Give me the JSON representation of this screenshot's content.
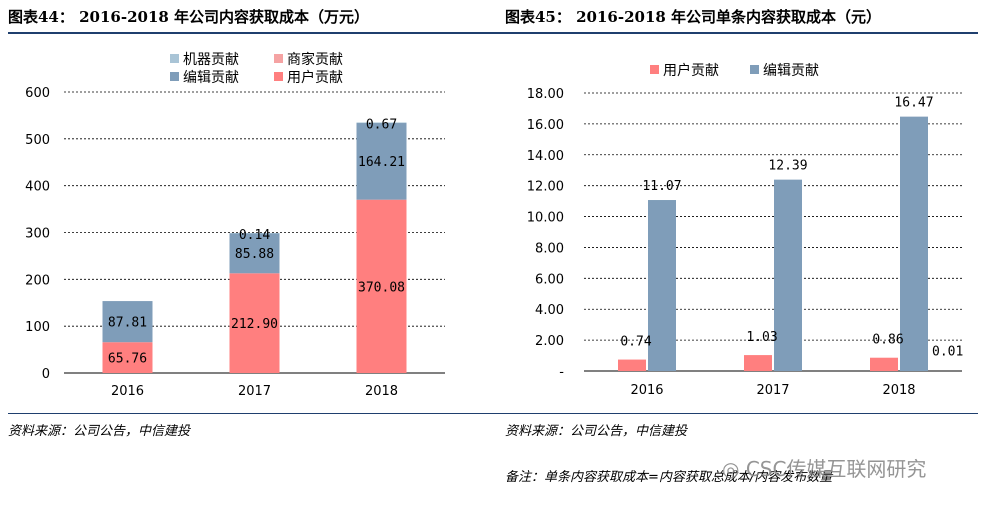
{
  "left_title": "图表44：  2016-2018 年公司内容获取成本（万元）",
  "right_title": "图表45：  2016-2018 年公司单条内容获取成本（元）",
  "left_source": "资料来源：公司公告，中信建投",
  "right_source": "资料来源：公司公告，中信建投",
  "right_note": "备注：单条内容获取成本=内容获取总成本/内容发布数量",
  "watermark": "CSC传媒互联网研究",
  "colors": {
    "machine": "#a9c4d6",
    "merchant": "#f5a3a3",
    "editor": "#7f9db9",
    "user": "#ff7f7f",
    "rule": "#1f3f6e"
  },
  "chart_data": [
    {
      "type": "bar",
      "stacked": true,
      "categories": [
        "2016",
        "2017",
        "2018"
      ],
      "series": [
        {
          "key": "user",
          "name": "用户贡献",
          "values": [
            65.76,
            212.9,
            370.08
          ],
          "labels": [
            "65.76",
            "212.90",
            "370.08"
          ]
        },
        {
          "key": "editor",
          "name": "编辑贡献",
          "values": [
            87.81,
            85.88,
            164.21
          ],
          "labels": [
            "87.81",
            "85.88",
            "164.21"
          ]
        },
        {
          "key": "merchant",
          "name": "商家贡献",
          "values": [
            0,
            0,
            0
          ],
          "labels": [
            "",
            "",
            ""
          ]
        },
        {
          "key": "machine",
          "name": "机器贡献",
          "values": [
            0,
            0.14,
            0.67
          ],
          "labels": [
            "",
            "0.14",
            "0.67"
          ]
        }
      ],
      "legend_order": [
        "machine",
        "merchant",
        "editor",
        "user"
      ],
      "ylim": [
        0,
        600
      ],
      "yticks": [
        0,
        100,
        200,
        300,
        400,
        500,
        600
      ],
      "ytick_labels": [
        "0",
        "100",
        "200",
        "300",
        "400",
        "500",
        "600"
      ],
      "grid": true,
      "legend_position": "top"
    },
    {
      "type": "bar",
      "stacked": false,
      "categories": [
        "2016",
        "2017",
        "2018"
      ],
      "series": [
        {
          "key": "user",
          "name": "用户贡献",
          "values": [
            0.74,
            1.03,
            0.86
          ],
          "labels": [
            "0.74",
            "1.03",
            "0.86"
          ]
        },
        {
          "key": "editor",
          "name": "编辑贡献",
          "values": [
            11.07,
            12.39,
            16.47
          ],
          "labels": [
            "11.07",
            "12.39",
            "16.47"
          ]
        }
      ],
      "extra_label": "0.01",
      "ylim": [
        0,
        18
      ],
      "yticks": [
        0,
        2,
        4,
        6,
        8,
        10,
        12,
        14,
        16,
        18
      ],
      "ytick_labels": [
        "-",
        "2.00",
        "4.00",
        "6.00",
        "8.00",
        "10.00",
        "12.00",
        "14.00",
        "16.00",
        "18.00"
      ],
      "grid": true,
      "legend_position": "top"
    }
  ]
}
